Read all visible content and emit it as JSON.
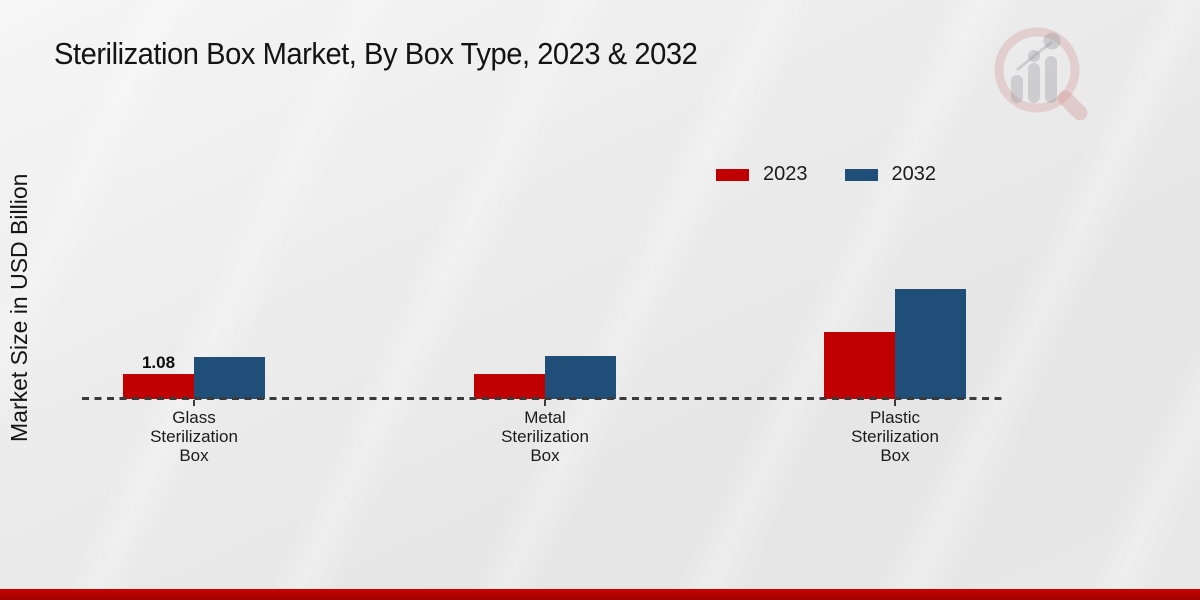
{
  "page": {
    "title": "Sterilization Box Market, By Box Type, 2023 & 2032",
    "ylabel": "Market Size in USD Billion"
  },
  "colors": {
    "series_2023": "#c00000",
    "series_2032": "#1f4e79",
    "baseline": "#3a3a3a",
    "bottom_strip": "#c00000",
    "background": "#e9e9e9"
  },
  "icons": {
    "watermark": "magnifier-bar-chart-logo-icon"
  },
  "chart_data": {
    "type": "bar",
    "title": "Sterilization Box Market, By Box Type, 2023 & 2032",
    "xlabel": "",
    "ylabel": "Market Size in USD Billion",
    "categories": [
      "Glass Sterilization Box",
      "Metal Sterilization Box",
      "Plastic Sterilization Box"
    ],
    "series": [
      {
        "name": "2023",
        "color": "#c00000",
        "values": [
          1.08,
          1.1,
          2.9
        ]
      },
      {
        "name": "2032",
        "color": "#1f4e79",
        "values": [
          1.8,
          1.85,
          4.75
        ]
      }
    ],
    "data_labels": [
      {
        "series_index": 0,
        "category_index": 0,
        "text": "1.08"
      }
    ],
    "ylim": [
      0,
      5
    ],
    "grid": false,
    "axis_style": "dashed-baseline-only",
    "legend_position": "top-right"
  }
}
